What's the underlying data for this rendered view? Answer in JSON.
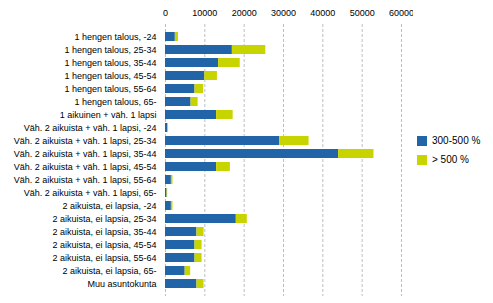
{
  "chart_data": {
    "type": "bar",
    "orientation": "horizontal",
    "stacked": true,
    "categories": [
      "1 hengen talous, -24",
      "1 hengen talous, 25-34",
      "1 hengen talous, 35-44",
      "1 hengen talous, 45-54",
      "1 hengen talous, 55-64",
      "1 hengen talous, 65-",
      "1 aikuinen + väh. 1 lapsi",
      "Väh. 2 aikuista + väh. 1 lapsi, -24",
      "Väh. 2 aikuista + väh. 1 lapsi, 25-34",
      "Väh. 2 aikuista + väh. 1 lapsi, 35-44",
      "Väh. 2 aikuista + väh. 1 lapsi, 45-54",
      "Väh. 2 aikuista + väh. 1 lapsi, 55-64",
      "Väh. 2 aikuista + väh. 1 lapsi, 65-",
      "2 aikuista, ei lapsia, -24",
      "2 aikuista, ei lapsia, 25-34",
      "2 aikuista, ei lapsia, 35-44",
      "2 aikuista, ei lapsia, 45-54",
      "2 aikuista, ei lapsia, 55-64",
      "2 aikuista, ei lapsia, 65-",
      "Muu asuntokunta"
    ],
    "series": [
      {
        "name": "300-500 %",
        "color": "#2165a8",
        "values": [
          2500,
          17000,
          13500,
          10000,
          7500,
          6500,
          13000,
          600,
          29000,
          44000,
          13000,
          1500,
          400,
          1500,
          18000,
          8000,
          7500,
          7500,
          5000,
          8000
        ]
      },
      {
        "name": "> 500 %",
        "color": "#c8d400",
        "values": [
          800,
          8500,
          5500,
          3200,
          2200,
          1800,
          4200,
          150,
          7500,
          9000,
          3500,
          400,
          150,
          400,
          2800,
          1800,
          1800,
          1800,
          1400,
          1800
        ]
      }
    ],
    "xlim": [
      0,
      60000
    ],
    "xticks": [
      0,
      10000,
      20000,
      30000,
      40000,
      50000,
      60000
    ],
    "grid": true,
    "legend": "right"
  }
}
